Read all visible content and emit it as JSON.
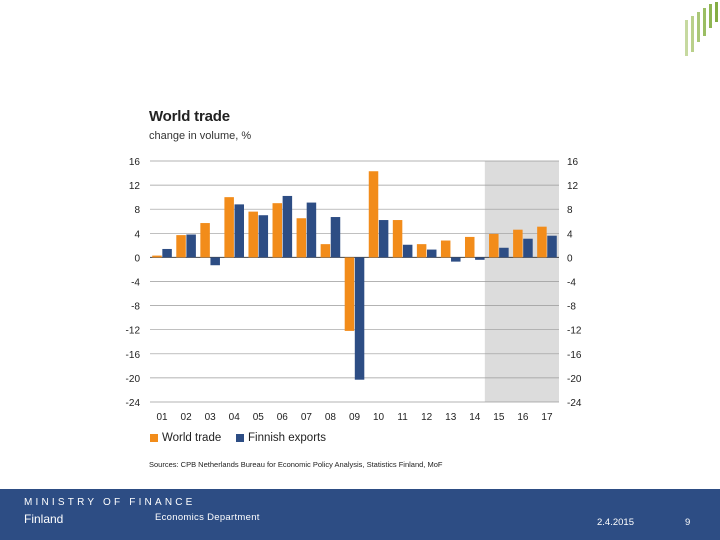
{
  "page": {
    "department": "Economics Department",
    "date": "2.4.2015",
    "page_number": "9"
  },
  "branding": {
    "ministry_line1": "MINISTRY OF FINANCE",
    "ministry_line2": "Finland"
  },
  "chart_data": {
    "type": "bar",
    "title": "World trade",
    "subtitle": "change in volume, %",
    "categories": [
      "01",
      "02",
      "03",
      "04",
      "05",
      "06",
      "07",
      "08",
      "09",
      "10",
      "11",
      "12",
      "13",
      "14",
      "15",
      "16",
      "17"
    ],
    "series": [
      {
        "name": "World trade",
        "color": "#f28c1a",
        "values": [
          0.3,
          3.7,
          5.7,
          10.0,
          7.6,
          9.0,
          6.5,
          2.2,
          -12.2,
          14.3,
          6.2,
          2.2,
          2.8,
          3.4,
          3.9,
          4.6,
          5.1
        ]
      },
      {
        "name": "Finnish exports",
        "color": "#2d4d84",
        "values": [
          1.4,
          3.8,
          -1.3,
          8.8,
          7.0,
          10.2,
          9.1,
          6.7,
          -20.3,
          6.2,
          2.1,
          1.3,
          -0.7,
          -0.4,
          1.6,
          3.1,
          3.6
        ]
      }
    ],
    "ylim": [
      -24,
      16
    ],
    "yticks": [
      16,
      12,
      8,
      4,
      0,
      -4,
      -8,
      -12,
      -16,
      -20,
      -24
    ],
    "forecast_shaded_from": "15",
    "legend_position": "bottom-left",
    "source": "Sources: CPB Netherlands Bureau for Economic Policy Analysis, Statistics Finland, MoF"
  }
}
